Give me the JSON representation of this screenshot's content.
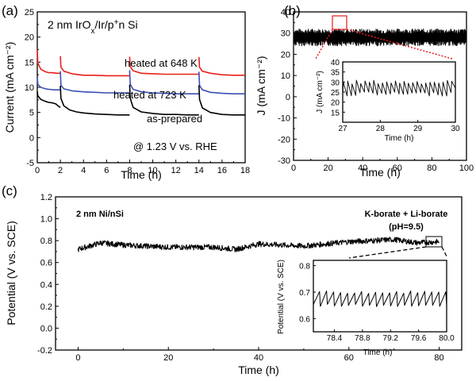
{
  "colors": {
    "red": "#e8201b",
    "blue": "#3b4fb5",
    "black": "#000000",
    "zoom_red": "#e31a1c"
  },
  "panels": {
    "a": {
      "label": "(a)",
      "title_prefix": "2 nm IrO",
      "title_sub": "x",
      "title_suffix": "/Ir/p",
      "title_sup": "+",
      "title_end": "n Si",
      "note": "@ 1.23 V vs. RHE"
    },
    "b": {
      "label": "(b)"
    },
    "c": {
      "label": "(c)",
      "title": "2 nm Ni/nSi",
      "electrolyte": "K-borate + Li-borate",
      "ph": "(pH=9.5)"
    }
  },
  "chart_data": [
    {
      "id": "a",
      "type": "line",
      "xlabel": "Time (h)",
      "ylabel": "Current (mA cm⁻²)",
      "xlim": [
        0,
        18
      ],
      "ylim": [
        -5,
        25
      ],
      "xticks": [
        "0",
        "2",
        "4",
        "6",
        "8",
        "10",
        "12",
        "14",
        "16",
        "18"
      ],
      "yticks": [
        "-5",
        "0",
        "5",
        "10",
        "15",
        "20",
        "25"
      ],
      "grid": false,
      "series": [
        {
          "name": "heated at 648 K",
          "color": "#e8201b",
          "segments": [
            {
              "x": [
                0,
                0.05,
                0.3,
                0.7,
                1.0,
                1.3,
                1.7,
                2.0
              ],
              "y": [
                17.5,
                14.8,
                13.6,
                13.1,
                12.9,
                12.9,
                12.8,
                12.8
              ]
            },
            {
              "x": [
                2.0,
                2.05,
                2.3,
                3.0,
                4.0,
                5.0,
                6.0,
                7.0,
                8.0
              ],
              "y": [
                16.2,
                14.0,
                13.2,
                12.7,
                12.4,
                12.4,
                12.3,
                12.3,
                12.3
              ]
            },
            {
              "x": [
                8.0,
                8.05,
                8.3,
                9.0,
                10.0,
                11.0,
                12.0,
                13.0,
                14.0
              ],
              "y": [
                16.1,
                14.1,
                13.3,
                12.8,
                12.7,
                12.6,
                12.6,
                12.6,
                12.6
              ]
            },
            {
              "x": [
                14.0,
                14.05,
                14.3,
                15.0,
                16.0,
                17.0,
                18.0
              ],
              "y": [
                16.0,
                14.0,
                13.2,
                12.8,
                12.5,
                12.4,
                12.4
              ]
            }
          ]
        },
        {
          "name": "heated at 723 K",
          "color": "#3b4fb5",
          "segments": [
            {
              "x": [
                0,
                0.05,
                0.3,
                0.7,
                1.0,
                1.5,
                2.0
              ],
              "y": [
                12.0,
                10.6,
                10.0,
                9.7,
                9.6,
                9.5,
                9.5
              ]
            },
            {
              "x": [
                2.0,
                2.05,
                2.3,
                3.0,
                4.0,
                5.0,
                6.0,
                7.0,
                8.0
              ],
              "y": [
                13.2,
                10.4,
                9.7,
                9.3,
                9.1,
                9.0,
                8.9,
                8.9,
                8.9
              ]
            },
            {
              "x": [
                8.0,
                8.05,
                8.3,
                9.0,
                10.0,
                11.0,
                12.0,
                13.0,
                14.0
              ],
              "y": [
                13.4,
                10.6,
                9.6,
                9.1,
                8.9,
                8.8,
                8.7,
                8.7,
                8.7
              ]
            },
            {
              "x": [
                14.0,
                14.05,
                14.3,
                15.0,
                16.0,
                17.0,
                18.0
              ],
              "y": [
                13.1,
                10.4,
                9.5,
                9.0,
                8.8,
                8.7,
                8.7
              ]
            }
          ]
        },
        {
          "name": "as-prepared",
          "color": "#000000",
          "segments": [
            {
              "x": [
                0,
                0.05,
                0.3,
                0.7,
                1.0,
                1.3,
                1.6,
                1.8,
                2.0
              ],
              "y": [
                9.2,
                8.3,
                7.6,
                7.2,
                7.0,
                6.9,
                6.7,
                6.3,
                6.0
              ]
            },
            {
              "x": [
                2.0,
                2.05,
                2.3,
                2.8,
                3.4,
                4.0,
                5.0,
                6.0,
                7.0,
                8.0
              ],
              "y": [
                10.3,
                7.8,
                6.3,
                5.5,
                5.1,
                4.9,
                4.7,
                4.6,
                4.5,
                4.5
              ]
            },
            {
              "x": [
                8.0,
                8.05,
                8.3,
                9.0,
                10.0,
                11.0,
                12.0,
                13.0,
                14.0
              ],
              "y": [
                10.5,
                7.8,
                6.0,
                5.1,
                4.8,
                4.6,
                4.6,
                4.5,
                4.5
              ]
            },
            {
              "x": [
                14.0,
                14.05,
                14.3,
                15.0,
                16.0,
                17.0,
                18.0
              ],
              "y": [
                10.4,
                7.6,
                5.9,
                5.0,
                4.6,
                4.5,
                4.5
              ]
            }
          ]
        }
      ]
    },
    {
      "id": "b",
      "type": "line",
      "xlabel": "Time (h)",
      "ylabel": "J (mA cm⁻²)",
      "xlim": [
        0,
        100
      ],
      "ylim": [
        -30,
        40
      ],
      "xticks": [
        "0",
        "20",
        "40",
        "60",
        "80",
        "100"
      ],
      "yticks": [
        "-30",
        "-20",
        "-10",
        "0",
        "10",
        "20",
        "30",
        "40"
      ],
      "grid": false,
      "series": [
        {
          "color": "#000000",
          "pattern": "sawtooth",
          "x_range": [
            0,
            100
          ],
          "y_base": 28,
          "y_amplitude": 4
        }
      ],
      "inset": {
        "xlabel": "Time (h)",
        "ylabel": "J (mA cm⁻²)",
        "xlim": [
          27,
          30
        ],
        "ylim": [
          10,
          40
        ],
        "xticks": [
          "27",
          "28",
          "29",
          "30"
        ],
        "yticks": [
          "15",
          "20",
          "25",
          "30",
          "35",
          "40"
        ],
        "series": [
          {
            "color": "#000000",
            "pattern": "sawtooth",
            "x_range": [
              27,
              30
            ],
            "y_base": 27,
            "y_amplitude": 4
          }
        ]
      }
    },
    {
      "id": "c",
      "type": "line",
      "xlabel": "Time (h)",
      "ylabel": "Potential (V vs. SCE)",
      "xlim": [
        -5,
        85
      ],
      "ylim": [
        -0.2,
        1.2
      ],
      "xticks": [
        "0",
        "20",
        "40",
        "60",
        "80"
      ],
      "yticks": [
        "-0.2",
        "0.0",
        "0.2",
        "0.4",
        "0.6",
        "0.8",
        "1.0",
        "1.2"
      ],
      "grid": false,
      "series": [
        {
          "color": "#000000",
          "pattern": "noisy",
          "x": [
            0,
            5,
            10,
            20,
            30,
            35,
            40,
            50,
            60,
            70,
            75,
            80
          ],
          "y": [
            0.72,
            0.78,
            0.76,
            0.74,
            0.74,
            0.72,
            0.77,
            0.75,
            0.79,
            0.81,
            0.78,
            0.79
          ]
        }
      ],
      "inset": {
        "xlabel": "Time (h)",
        "ylabel": "Potential (V vs. SCE)",
        "xlim": [
          78.1,
          80.0
        ],
        "ylim": [
          0.55,
          0.82
        ],
        "xticks": [
          "78.4",
          "78.8",
          "79.2",
          "79.6",
          "80.0"
        ],
        "yticks": [
          "0.6",
          "0.7",
          "0.8"
        ],
        "series": [
          {
            "color": "#000000",
            "pattern": "sawtooth",
            "x_range": [
              78.1,
              80.0
            ],
            "y_base": 0.675,
            "y_amplitude": 0.05,
            "cycles": 19
          }
        ]
      }
    }
  ]
}
